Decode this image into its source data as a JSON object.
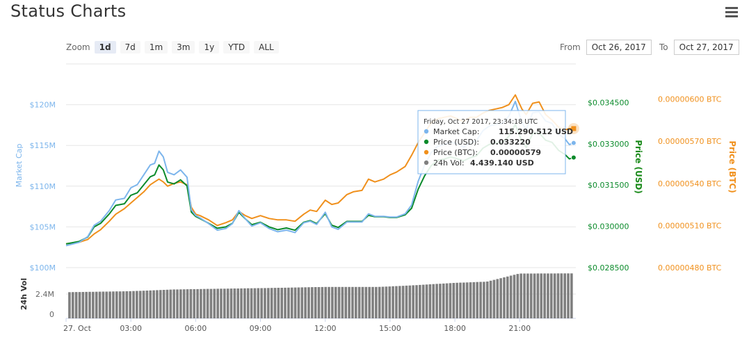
{
  "header": {
    "title": "Status Charts",
    "menu_icon": "hamburger-menu-icon"
  },
  "zoom": {
    "label": "Zoom",
    "buttons": [
      "1d",
      "7d",
      "1m",
      "3m",
      "1y",
      "YTD",
      "ALL"
    ],
    "active": "1d"
  },
  "range": {
    "from_label": "From",
    "from_value": "Oct 26, 2017",
    "to_label": "To",
    "to_value": "Oct 27, 2017"
  },
  "colors": {
    "market_cap": "#7cb5ec",
    "price_usd": "#0a8a2a",
    "price_btc": "#f0901c",
    "volume": "#808080",
    "usd_axis_title": "#1a8a1a",
    "btc_axis_title": "#f0901c",
    "mcap_axis_title": "#7cb5ec"
  },
  "tooltip": {
    "date": "Friday, Oct 27 2017, 23:34:18 UTC",
    "rows": [
      {
        "label": "Market Cap:",
        "value": "115.290.512 USD"
      },
      {
        "label": "Price (USD):",
        "value": "0.033220"
      },
      {
        "label": "Price (BTC):",
        "value": "0.00000579"
      },
      {
        "label": "24h Vol:",
        "value": "4.439.140 USD"
      }
    ]
  },
  "chart_data": {
    "type": "line",
    "x_tick_labels": [
      "27. Oct",
      "03:00",
      "06:00",
      "09:00",
      "12:00",
      "15:00",
      "18:00",
      "21:00"
    ],
    "x_range_hours": [
      0,
      23.6
    ],
    "axes": {
      "market_cap": {
        "title": "Market Cap",
        "ticks": [
          "$100M",
          "$105M",
          "$110M",
          "$115M",
          "$120M"
        ],
        "range": [
          100,
          125
        ]
      },
      "price_usd": {
        "title": "Price (USD)",
        "ticks": [
          "$0.028500",
          "$0.030000",
          "$0.031500",
          "$0.033000",
          "$0.034500"
        ],
        "range": [
          0.0285,
          0.0359
        ]
      },
      "price_btc": {
        "title": "Price (BTC)",
        "ticks": [
          "0.00000480 BTC",
          "0.00000510 BTC",
          "0.00000540 BTC",
          "0.00000570 BTC",
          "0.00000600 BTC"
        ],
        "range": [
          4.8,
          6.25
        ]
      },
      "volume": {
        "title": "24h Vol",
        "ticks": [
          "0",
          "2.4M"
        ],
        "range": [
          0,
          4.8
        ]
      }
    },
    "series": [
      {
        "name": "Market Cap",
        "x": [
          0,
          0.6,
          1,
          1.3,
          1.6,
          2,
          2.3,
          2.7,
          3,
          3.3,
          3.6,
          3.9,
          4.1,
          4.3,
          4.5,
          4.7,
          5,
          5.3,
          5.6,
          5.8,
          6,
          6.2,
          6.6,
          7,
          7.4,
          7.7,
          8,
          8.3,
          8.6,
          9,
          9.4,
          9.8,
          10.2,
          10.6,
          11,
          11.3,
          11.6,
          12,
          12.3,
          12.6,
          13,
          13.3,
          13.7,
          14,
          14.3,
          14.7,
          15,
          15.3,
          15.7,
          16,
          16.3,
          16.6,
          16.9,
          17.2,
          17.5,
          17.8,
          18.1,
          18.4,
          18.7,
          19,
          19.3,
          19.6,
          19.9,
          20.2,
          20.5,
          20.8,
          21.1,
          21.3,
          21.6,
          21.9,
          22.2,
          22.5,
          22.8,
          23.1,
          23.3,
          23.5
        ],
        "values": [
          102.7,
          103.1,
          103.8,
          105.2,
          105.7,
          107.0,
          108.3,
          108.5,
          109.8,
          110.2,
          111.4,
          112.6,
          112.8,
          114.3,
          113.6,
          111.7,
          111.4,
          112.0,
          111.1,
          107.1,
          106.4,
          106.1,
          105.4,
          104.6,
          104.8,
          105.4,
          107.0,
          106.0,
          105.1,
          105.5,
          104.8,
          104.4,
          104.6,
          104.3,
          105.5,
          105.7,
          105.3,
          106.8,
          105.0,
          104.7,
          105.6,
          105.6,
          105.6,
          106.6,
          106.3,
          106.3,
          106.2,
          106.2,
          106.6,
          107.7,
          110.6,
          112.6,
          114.1,
          114.9,
          115.1,
          115.4,
          115.2,
          114.8,
          115.3,
          115.6,
          116.8,
          117.4,
          117.6,
          117.7,
          118.6,
          120.4,
          117.8,
          116.9,
          119.0,
          119.1,
          118.0,
          117.7,
          116.4,
          115.8,
          115.1,
          115.3
        ]
      },
      {
        "name": "Price (USD)",
        "x": [
          0,
          0.6,
          1,
          1.3,
          1.6,
          2,
          2.3,
          2.7,
          3,
          3.3,
          3.6,
          3.9,
          4.1,
          4.3,
          4.5,
          4.7,
          5,
          5.3,
          5.6,
          5.8,
          6,
          6.2,
          6.6,
          7,
          7.4,
          7.7,
          8,
          8.3,
          8.6,
          9,
          9.4,
          9.8,
          10.2,
          10.6,
          11,
          11.3,
          11.6,
          12,
          12.3,
          12.6,
          13,
          13.3,
          13.7,
          14,
          14.3,
          14.7,
          15,
          15.3,
          15.7,
          16,
          16.3,
          16.6,
          16.9,
          17.2,
          17.5,
          17.8,
          18.1,
          18.4,
          18.7,
          19,
          19.3,
          19.6,
          19.9,
          20.2,
          20.5,
          20.8,
          21.1,
          21.3,
          21.6,
          21.9,
          22.2,
          22.5,
          22.8,
          23.1,
          23.3,
          23.5
        ],
        "values": [
          0.02936,
          0.02945,
          0.02961,
          0.02998,
          0.03011,
          0.03045,
          0.03076,
          0.03082,
          0.03113,
          0.03122,
          0.03151,
          0.0318,
          0.03187,
          0.03223,
          0.03205,
          0.03161,
          0.03154,
          0.03169,
          0.03147,
          0.03052,
          0.03036,
          0.03028,
          0.03011,
          0.02993,
          0.02998,
          0.03011,
          0.03051,
          0.03027,
          0.03006,
          0.03015,
          0.02998,
          0.02988,
          0.02994,
          0.02986,
          0.03015,
          0.03021,
          0.0301,
          0.03046,
          0.03004,
          0.02996,
          0.03018,
          0.03018,
          0.03018,
          0.0304,
          0.03035,
          0.03035,
          0.03032,
          0.03032,
          0.03042,
          0.03066,
          0.03135,
          0.03184,
          0.0322,
          0.0324,
          0.03244,
          0.03252,
          0.03246,
          0.03238,
          0.03249,
          0.03256,
          0.03284,
          0.03298,
          0.03303,
          0.03305,
          0.03327,
          0.0337,
          0.03309,
          0.03287,
          0.03337,
          0.0334,
          0.03313,
          0.03305,
          0.03276,
          0.03261,
          0.03245,
          0.0325
        ]
      },
      {
        "name": "Price (BTC)",
        "x": [
          0,
          0.6,
          1,
          1.3,
          1.6,
          2,
          2.3,
          2.7,
          3,
          3.3,
          3.6,
          3.9,
          4.1,
          4.3,
          4.5,
          4.7,
          5,
          5.3,
          5.6,
          5.8,
          6,
          6.2,
          6.6,
          7,
          7.4,
          7.7,
          8,
          8.3,
          8.6,
          9,
          9.4,
          9.8,
          10.2,
          10.6,
          11,
          11.3,
          11.6,
          12,
          12.3,
          12.6,
          13,
          13.3,
          13.7,
          14,
          14.3,
          14.7,
          15,
          15.3,
          15.7,
          16,
          16.3,
          16.6,
          16.9,
          17.2,
          17.5,
          17.8,
          18.1,
          18.4,
          18.7,
          19,
          19.3,
          19.6,
          19.9,
          20.2,
          20.5,
          20.8,
          21.1,
          21.3,
          21.6,
          21.9,
          22.2,
          22.5,
          22.8,
          23.1,
          23.3,
          23.5
        ],
        "values": [
          4.97,
          4.98,
          5.0,
          5.04,
          5.07,
          5.13,
          5.18,
          5.22,
          5.26,
          5.3,
          5.34,
          5.39,
          5.41,
          5.43,
          5.41,
          5.38,
          5.4,
          5.41,
          5.39,
          5.23,
          5.18,
          5.17,
          5.14,
          5.1,
          5.12,
          5.14,
          5.2,
          5.17,
          5.15,
          5.17,
          5.15,
          5.14,
          5.14,
          5.13,
          5.18,
          5.21,
          5.2,
          5.28,
          5.25,
          5.26,
          5.32,
          5.34,
          5.35,
          5.43,
          5.41,
          5.43,
          5.46,
          5.48,
          5.52,
          5.6,
          5.69,
          5.76,
          5.83,
          5.86,
          5.87,
          5.88,
          5.86,
          5.84,
          5.87,
          5.87,
          5.9,
          5.92,
          5.93,
          5.94,
          5.96,
          6.03,
          5.93,
          5.89,
          5.97,
          5.98,
          5.89,
          5.85,
          5.8,
          5.78,
          5.79,
          5.79
        ]
      },
      {
        "name": "24h Vol",
        "type": "column",
        "x_range": [
          0.1,
          23.5
        ],
        "count": 150,
        "start_values": [
          2.58,
          2.6,
          2.62,
          2.64,
          2.66,
          2.68,
          2.7,
          2.72
        ],
        "breakpoints_hours": [
          0,
          3,
          5,
          7,
          9.5,
          12,
          14.5,
          16,
          18,
          19.5,
          21,
          23.5
        ],
        "breakpoint_values": [
          2.58,
          2.68,
          2.85,
          2.92,
          3.0,
          3.1,
          3.1,
          3.25,
          3.5,
          3.62,
          4.42,
          4.44
        ]
      }
    ]
  }
}
